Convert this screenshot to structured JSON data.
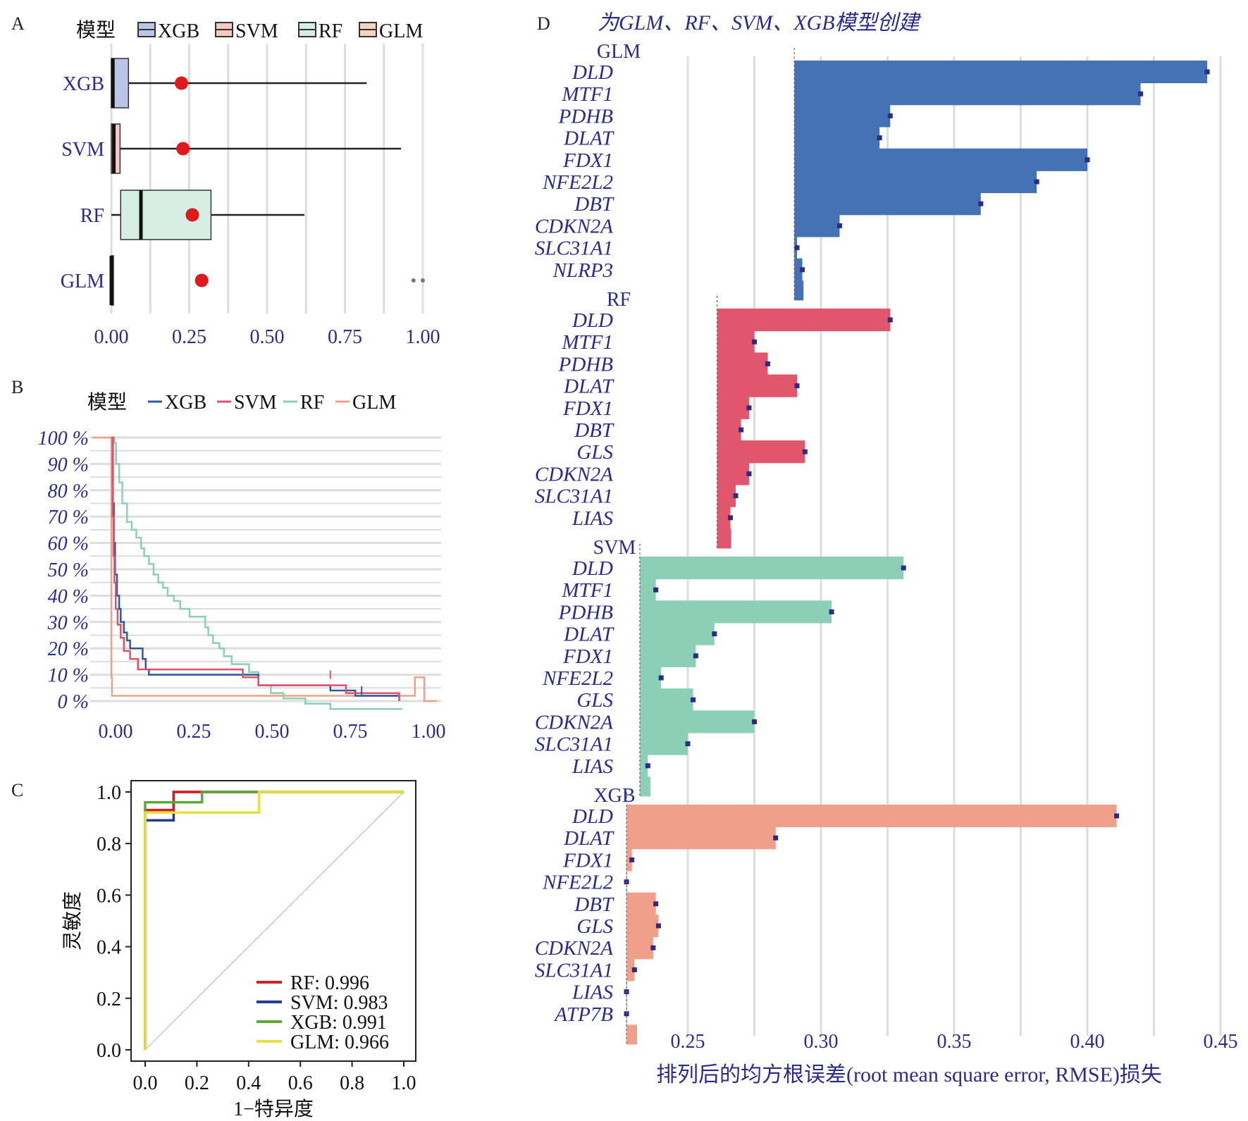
{
  "colors": {
    "XGB": "#2c5aa0",
    "SVM": "#e0516a",
    "RF": "#8bcfb6",
    "GLM": "#f0a08a",
    "panelA": {
      "XGB": "#b9c6ea",
      "SVM": "#f6c9c6",
      "RF": "#d6eee4",
      "GLM": "#f6d2c3"
    },
    "rocC": {
      "RF": "#d62020",
      "SVM": "#1f3e96",
      "XGB": "#5aa83a",
      "GLM": "#e8e040"
    },
    "grid": "#dddddd",
    "text_navy": "#2b2b8c",
    "point": "#e0191b",
    "vip_point": "#2b2b8c"
  },
  "panel_labels": [
    "A",
    "B",
    "C",
    "D"
  ],
  "chart_data": [
    {
      "panel": "A",
      "type": "box",
      "legend": {
        "title": "模型",
        "entries": [
          "XGB",
          "SVM",
          "RF",
          "GLM"
        ],
        "position": "top"
      },
      "categories": [
        "XGB",
        "SVM",
        "RF",
        "GLM"
      ],
      "x_ticks": [
        "0.00",
        "0.25",
        "0.50",
        "0.75",
        "1.00"
      ],
      "xlim": [
        0,
        1
      ],
      "boxes": [
        {
          "model": "XGB",
          "q1": 0.0,
          "median": 0.005,
          "q3": 0.055,
          "whisker_low": 0.0,
          "whisker_high": 0.82,
          "mean": 0.225
        },
        {
          "model": "SVM",
          "q1": 0.0,
          "median": 0.008,
          "q3": 0.028,
          "whisker_low": 0.0,
          "whisker_high": 0.93,
          "mean": 0.23
        },
        {
          "model": "RF",
          "q1": 0.03,
          "median": 0.095,
          "q3": 0.32,
          "whisker_low": 0.0,
          "whisker_high": 0.62,
          "mean": 0.26
        },
        {
          "model": "GLM",
          "q1": 0.0,
          "median": 0.0,
          "q3": 0.002,
          "whisker_low": 0.0,
          "whisker_high": 0.002,
          "mean": 0.29,
          "outliers": [
            0.97,
            1.0
          ]
        }
      ]
    },
    {
      "panel": "B",
      "type": "line",
      "legend": {
        "title": "模型",
        "entries": [
          "XGB",
          "SVM",
          "RF",
          "GLM"
        ],
        "position": "top"
      },
      "x_ticks": [
        "0.00",
        "0.25",
        "0.50",
        "0.75",
        "1.00"
      ],
      "y_ticks": [
        "100 %",
        "90 %",
        "80 %",
        "70 %",
        "60 %",
        "50 %",
        "40 %",
        "30 %",
        "20 %",
        "10 %",
        "0 %"
      ],
      "xlim": [
        0,
        1
      ],
      "ylim": [
        0,
        100
      ],
      "series": [
        {
          "name": "GLM",
          "points": [
            [
              -0.06,
              100
            ],
            [
              0.0,
              100
            ],
            [
              0.0,
              9
            ],
            [
              0.002,
              9
            ],
            [
              0.002,
              2
            ],
            [
              0.97,
              2
            ],
            [
              0.97,
              9
            ],
            [
              1.0,
              9
            ],
            [
              1.0,
              0
            ],
            [
              1.04,
              0
            ]
          ]
        },
        {
          "name": "RF",
          "points": [
            [
              0.0,
              100
            ],
            [
              0.01,
              100
            ],
            [
              0.01,
              98
            ],
            [
              0.015,
              98
            ],
            [
              0.015,
              90
            ],
            [
              0.025,
              90
            ],
            [
              0.025,
              83
            ],
            [
              0.035,
              83
            ],
            [
              0.035,
              75
            ],
            [
              0.05,
              75
            ],
            [
              0.05,
              68
            ],
            [
              0.065,
              68
            ],
            [
              0.065,
              65
            ],
            [
              0.08,
              65
            ],
            [
              0.08,
              62
            ],
            [
              0.095,
              62
            ],
            [
              0.095,
              58
            ],
            [
              0.105,
              58
            ],
            [
              0.105,
              55
            ],
            [
              0.12,
              55
            ],
            [
              0.12,
              52
            ],
            [
              0.135,
              52
            ],
            [
              0.135,
              48
            ],
            [
              0.15,
              48
            ],
            [
              0.15,
              45
            ],
            [
              0.165,
              45
            ],
            [
              0.165,
              43
            ],
            [
              0.18,
              43
            ],
            [
              0.18,
              40
            ],
            [
              0.2,
              40
            ],
            [
              0.2,
              38
            ],
            [
              0.22,
              38
            ],
            [
              0.22,
              35
            ],
            [
              0.25,
              35
            ],
            [
              0.25,
              32
            ],
            [
              0.3,
              32
            ],
            [
              0.3,
              28
            ],
            [
              0.31,
              28
            ],
            [
              0.31,
              25
            ],
            [
              0.325,
              25
            ],
            [
              0.325,
              22
            ],
            [
              0.345,
              22
            ],
            [
              0.345,
              20
            ],
            [
              0.36,
              20
            ],
            [
              0.36,
              17
            ],
            [
              0.385,
              17
            ],
            [
              0.385,
              14
            ],
            [
              0.44,
              14
            ],
            [
              0.44,
              11
            ],
            [
              0.47,
              11
            ],
            [
              0.47,
              6
            ],
            [
              0.51,
              6
            ],
            [
              0.51,
              3
            ],
            [
              0.55,
              3
            ],
            [
              0.55,
              1
            ],
            [
              0.62,
              1
            ],
            [
              0.62,
              -1
            ],
            [
              0.7,
              -1
            ],
            [
              0.7,
              -3
            ],
            [
              0.93,
              -3
            ]
          ]
        },
        {
          "name": "XGB",
          "points": [
            [
              0.0,
              100
            ],
            [
              0.005,
              100
            ],
            [
              0.005,
              75
            ],
            [
              0.008,
              75
            ],
            [
              0.008,
              60
            ],
            [
              0.012,
              60
            ],
            [
              0.012,
              48
            ],
            [
              0.018,
              48
            ],
            [
              0.018,
              40
            ],
            [
              0.025,
              40
            ],
            [
              0.025,
              35
            ],
            [
              0.03,
              35
            ],
            [
              0.03,
              30
            ],
            [
              0.04,
              30
            ],
            [
              0.04,
              26
            ],
            [
              0.05,
              26
            ],
            [
              0.05,
              23
            ],
            [
              0.06,
              23
            ],
            [
              0.06,
              20
            ],
            [
              0.1,
              20
            ],
            [
              0.1,
              16
            ],
            [
              0.11,
              16
            ],
            [
              0.11,
              12
            ],
            [
              0.12,
              12
            ],
            [
              0.12,
              10
            ],
            [
              0.47,
              10
            ],
            [
              0.47,
              6
            ],
            [
              0.7,
              6
            ],
            [
              0.7,
              4
            ],
            [
              0.78,
              4
            ],
            [
              0.78,
              2
            ],
            [
              0.92,
              2
            ],
            [
              0.92,
              0
            ]
          ]
        },
        {
          "name": "SVM",
          "points": [
            [
              0.0,
              100
            ],
            [
              0.004,
              100
            ],
            [
              0.004,
              70
            ],
            [
              0.007,
              70
            ],
            [
              0.007,
              55
            ],
            [
              0.01,
              55
            ],
            [
              0.01,
              45
            ],
            [
              0.014,
              45
            ],
            [
              0.014,
              35
            ],
            [
              0.02,
              35
            ],
            [
              0.02,
              29
            ],
            [
              0.03,
              29
            ],
            [
              0.03,
              24
            ],
            [
              0.04,
              24
            ],
            [
              0.04,
              19
            ],
            [
              0.06,
              19
            ],
            [
              0.06,
              16
            ],
            [
              0.085,
              16
            ],
            [
              0.085,
              12
            ],
            [
              0.42,
              12
            ],
            [
              0.42,
              9
            ],
            [
              0.47,
              9
            ],
            [
              0.47,
              6
            ],
            [
              0.75,
              6
            ],
            [
              0.75,
              3
            ],
            [
              0.92,
              3
            ],
            [
              0.92,
              0
            ]
          ]
        }
      ]
    },
    {
      "panel": "C",
      "type": "line",
      "xlabel": "1−特异度",
      "ylabel": "灵敏度",
      "x_ticks": [
        "0.0",
        "0.2",
        "0.4",
        "0.6",
        "0.8",
        "1.0"
      ],
      "y_ticks": [
        "1.0",
        "0.8",
        "0.6",
        "0.4",
        "0.2",
        "0.0"
      ],
      "xlim": [
        0,
        1
      ],
      "ylim": [
        0,
        1
      ],
      "legend": {
        "position": "bottom-right",
        "entries": [
          "RF: 0.996",
          "SVM: 0.983",
          "XGB: 0.991",
          "GLM: 0.966"
        ]
      },
      "series": [
        {
          "name": "SVM",
          "points": [
            [
              0,
              0
            ],
            [
              0,
              0.89
            ],
            [
              0.11,
              0.89
            ],
            [
              0.11,
              1.0
            ],
            [
              1.0,
              1.0
            ]
          ]
        },
        {
          "name": "RF",
          "points": [
            [
              0,
              0
            ],
            [
              0,
              0.93
            ],
            [
              0.11,
              0.93
            ],
            [
              0.11,
              1.0
            ],
            [
              1.0,
              1.0
            ]
          ]
        },
        {
          "name": "XGB",
          "points": [
            [
              0,
              0
            ],
            [
              0,
              0.96
            ],
            [
              0.22,
              0.96
            ],
            [
              0.22,
              1.0
            ],
            [
              1.0,
              1.0
            ]
          ]
        },
        {
          "name": "GLM",
          "points": [
            [
              0,
              0
            ],
            [
              0,
              0.92
            ],
            [
              0.44,
              0.92
            ],
            [
              0.44,
              1.0
            ],
            [
              1.0,
              1.0
            ]
          ]
        }
      ]
    },
    {
      "panel": "D",
      "type": "bar",
      "title": "为GLM、RF、SVM、XGB模型创建",
      "xlabel": "排列后的均方根误差(root mean square error, RMSE)损失",
      "x_ticks": [
        "0.25",
        "0.30",
        "0.35",
        "0.40",
        "0.45"
      ],
      "xlim": [
        0.225,
        0.455
      ],
      "facets": [
        {
          "name": "GLM",
          "baseline": 0.29,
          "bars": [
            {
              "label": "DLD",
              "value": 0.445
            },
            {
              "label": "MTF1",
              "value": 0.42
            },
            {
              "label": "PDHB",
              "value": 0.326
            },
            {
              "label": "DLAT",
              "value": 0.322
            },
            {
              "label": "FDX1",
              "value": 0.4
            },
            {
              "label": "NFE2L2",
              "value": 0.381
            },
            {
              "label": "DBT",
              "value": 0.36
            },
            {
              "label": "CDKN2A",
              "value": 0.307
            },
            {
              "label": "SLC31A1",
              "value": 0.291
            },
            {
              "label": "NLRP3",
              "value": 0.293
            }
          ]
        },
        {
          "name": "RF",
          "baseline": 0.261,
          "bars": [
            {
              "label": "DLD",
              "value": 0.326
            },
            {
              "label": "MTF1",
              "value": 0.275
            },
            {
              "label": "PDHB",
              "value": 0.28
            },
            {
              "label": "DLAT",
              "value": 0.291
            },
            {
              "label": "FDX1",
              "value": 0.273
            },
            {
              "label": "DBT",
              "value": 0.27
            },
            {
              "label": "GLS",
              "value": 0.294
            },
            {
              "label": "CDKN2A",
              "value": 0.273
            },
            {
              "label": "SLC31A1",
              "value": 0.268
            },
            {
              "label": "LIAS",
              "value": 0.266
            }
          ]
        },
        {
          "name": "SVM",
          "baseline": 0.232,
          "bars": [
            {
              "label": "DLD",
              "value": 0.331
            },
            {
              "label": "MTF1",
              "value": 0.238
            },
            {
              "label": "PDHB",
              "value": 0.304
            },
            {
              "label": "DLAT",
              "value": 0.26
            },
            {
              "label": "FDX1",
              "value": 0.253
            },
            {
              "label": "NFE2L2",
              "value": 0.24
            },
            {
              "label": "GLS",
              "value": 0.252
            },
            {
              "label": "CDKN2A",
              "value": 0.275
            },
            {
              "label": "SLC31A1",
              "value": 0.25
            },
            {
              "label": "LIAS",
              "value": 0.235
            }
          ]
        },
        {
          "name": "XGB",
          "baseline": 0.227,
          "bars": [
            {
              "label": "DLD",
              "value": 0.411
            },
            {
              "label": "DLAT",
              "value": 0.283
            },
            {
              "label": "FDX1",
              "value": 0.229
            },
            {
              "label": "NFE2L2",
              "value": 0.227
            },
            {
              "label": "DBT",
              "value": 0.238
            },
            {
              "label": "GLS",
              "value": 0.239
            },
            {
              "label": "CDKN2A",
              "value": 0.237
            },
            {
              "label": "SLC31A1",
              "value": 0.23
            },
            {
              "label": "LIAS",
              "value": 0.227
            },
            {
              "label": "ATP7B",
              "value": 0.227
            }
          ]
        }
      ]
    }
  ]
}
